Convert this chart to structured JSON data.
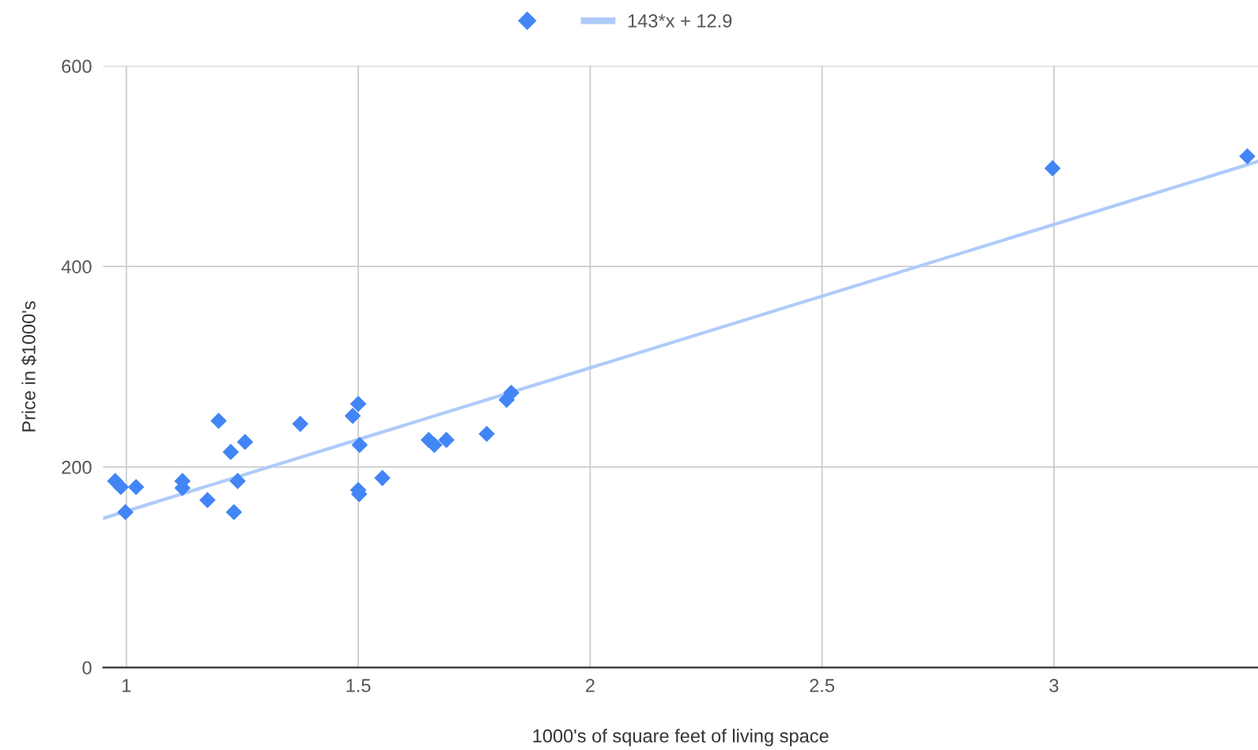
{
  "chart_data": {
    "type": "scatter",
    "xlabel": "1000's of square feet of living space",
    "ylabel": "Price in $1000's",
    "xlim": [
      0.95,
      3.44
    ],
    "xticks": [
      1,
      1.5,
      2,
      2.5,
      3
    ],
    "ylim": [
      0,
      600
    ],
    "yticks": [
      0,
      200,
      400,
      600
    ],
    "grid": true,
    "legend": "top",
    "series": [
      {
        "marker": "diamond",
        "color": "#4285f4",
        "x": [
          0.976,
          0.988,
          0.998,
          1.021,
          1.121,
          1.121,
          1.175,
          1.199,
          1.225,
          1.232,
          1.24,
          1.256,
          1.375,
          1.488,
          1.5,
          1.503,
          1.5,
          1.502,
          1.552,
          1.652,
          1.664,
          1.69,
          1.777,
          1.82,
          1.83,
          2.997,
          3.417
        ],
        "values": [
          186,
          180,
          155,
          180,
          186,
          179,
          167,
          246,
          215,
          155,
          186,
          225,
          243,
          251,
          263,
          222,
          177,
          173,
          189,
          227,
          222,
          227,
          233,
          267,
          274,
          498,
          510
        ]
      },
      {
        "type": "line",
        "name": "143*x + 12.9",
        "color": "#aecbfa",
        "x": [
          0.95,
          3.44
        ],
        "values": [
          148.8,
          504.8
        ]
      }
    ]
  }
}
